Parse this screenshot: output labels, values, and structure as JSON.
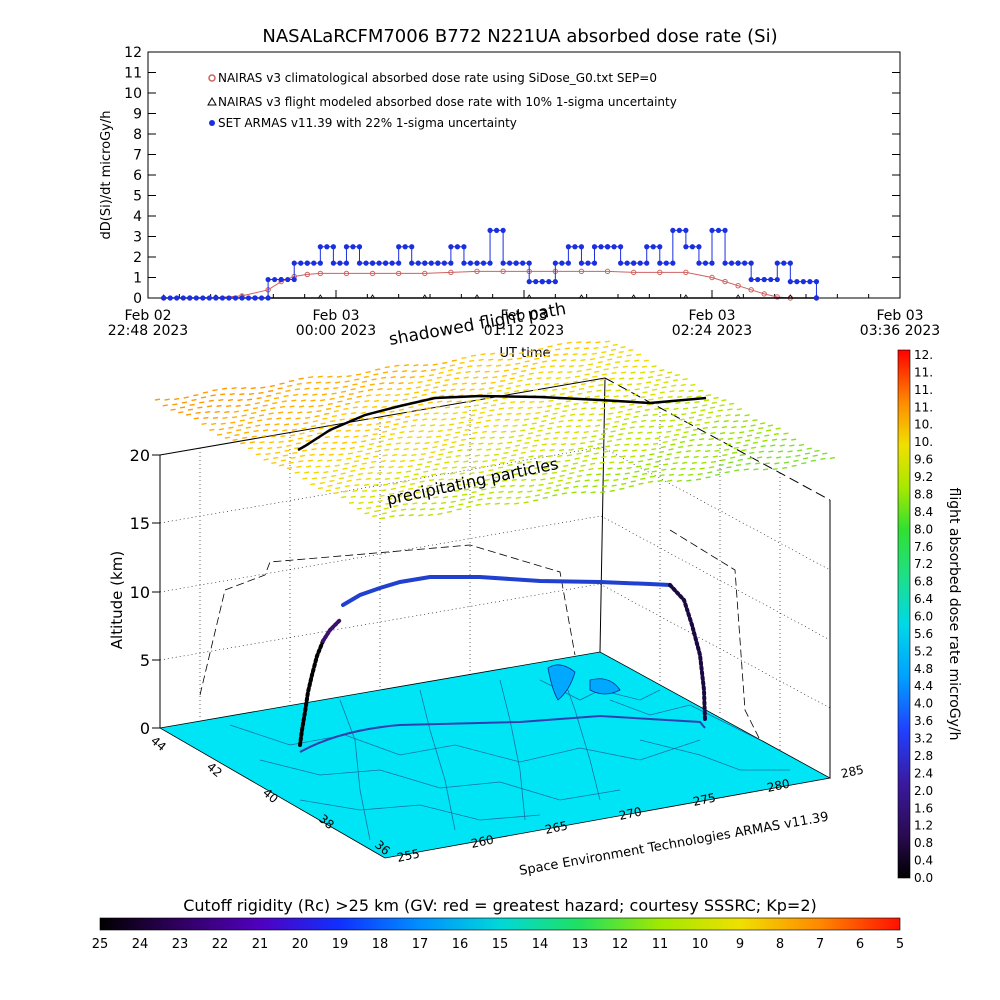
{
  "chart_data": [
    {
      "type": "line",
      "title": "NASALaRCFM7006   B772 N221UA absorbed dose rate (Si)",
      "ylabel": "dD(Si)/dt microGy/h",
      "xlabel": "UT time",
      "ylim": [
        0,
        12
      ],
      "y_ticks": [
        "0",
        "1",
        "2",
        "3",
        "4",
        "5",
        "6",
        "7",
        "8",
        "9",
        "10",
        "11",
        "12"
      ],
      "x_ticks": [
        {
          "line1": "Feb 02",
          "line2": "22:48 2023"
        },
        {
          "line1": "Feb 03",
          "line2": "00:00 2023"
        },
        {
          "line1": "Feb 03",
          "line2": "01:12 2023"
        },
        {
          "line1": "Feb 03",
          "line2": "02:24 2023"
        },
        {
          "line1": "Feb 03",
          "line2": "03:36 2023"
        }
      ],
      "legend_position": "top-left",
      "series": [
        {
          "name": "NAIRAS v3 climatological absorbed dose rate using SiDose_G0.txt SEP=0",
          "color": "#d06060",
          "x_minutes": [
            0,
            10,
            20,
            30,
            40,
            45,
            50,
            55,
            60,
            70,
            80,
            90,
            100,
            110,
            120,
            130,
            140,
            150,
            160,
            170,
            180,
            190,
            200,
            210,
            215,
            220,
            225,
            230,
            235,
            240,
            250
          ],
          "values": [
            0,
            0,
            0.02,
            0.1,
            0.4,
            0.8,
            1.05,
            1.15,
            1.2,
            1.2,
            1.2,
            1.2,
            1.2,
            1.25,
            1.3,
            1.3,
            1.3,
            1.3,
            1.3,
            1.3,
            1.25,
            1.25,
            1.25,
            1.0,
            0.8,
            0.6,
            0.4,
            0.2,
            0.05,
            0,
            0
          ]
        },
        {
          "name": "NAIRAS v3 flight modeled absorbed dose rate with 10% 1-sigma uncertainty",
          "color": "#000000",
          "x_minutes": [
            0,
            20,
            40,
            60,
            80,
            100,
            120,
            140,
            160,
            180,
            200,
            220,
            240,
            250
          ],
          "values": [
            0,
            0,
            0,
            0,
            0,
            0,
            0,
            0,
            0,
            0,
            0,
            0,
            0,
            0
          ]
        },
        {
          "name": "SET ARMAS v11.39 with 22% 1-sigma uncertainty",
          "color": "#1a2fe0",
          "x_minutes": [
            0,
            35,
            40,
            45,
            50,
            55,
            60,
            65,
            70,
            75,
            80,
            85,
            90,
            95,
            100,
            105,
            110,
            115,
            120,
            125,
            130,
            135,
            140,
            145,
            150,
            155,
            160,
            165,
            170,
            175,
            180,
            185,
            190,
            195,
            200,
            205,
            210,
            215,
            220,
            225,
            230,
            235,
            240,
            250
          ],
          "values": [
            0,
            0,
            0.9,
            0.9,
            1.7,
            1.7,
            2.5,
            1.7,
            2.5,
            1.7,
            1.7,
            1.7,
            2.5,
            1.7,
            1.7,
            1.7,
            2.5,
            1.7,
            1.7,
            3.3,
            1.7,
            1.7,
            0.8,
            0.8,
            1.7,
            2.5,
            1.7,
            2.5,
            2.5,
            1.7,
            1.7,
            2.5,
            1.7,
            3.3,
            2.5,
            1.7,
            3.3,
            1.7,
            1.7,
            0.9,
            0.9,
            1.7,
            0.8,
            0
          ]
        }
      ]
    },
    {
      "type": "scatter",
      "title": "shadowed flight path",
      "annotation": "precipitating particles",
      "zlabel": "Altitude (km)",
      "z_ticks": [
        "0",
        "5",
        "10",
        "15",
        "20"
      ],
      "lat_ticks": [
        "44",
        "42",
        "40",
        "38",
        "36"
      ],
      "lon_ticks": [
        "255",
        "260",
        "265",
        "270",
        "275",
        "280",
        "285"
      ],
      "credit": "Space Environment Technologies ARMAS v11.39"
    },
    {
      "type": "heatmap",
      "title": "flight absorbed dose rate microGy/h",
      "orientation": "vertical",
      "tick_labels": [
        "12.",
        "11.",
        "11.",
        "11.",
        "10.",
        "10.",
        "9.6",
        "9.2",
        "8.8",
        "8.4",
        "8.0",
        "7.6",
        "7.2",
        "6.8",
        "6.4",
        "6.0",
        "5.6",
        "5.2",
        "4.8",
        "4.4",
        "4.0",
        "3.6",
        "3.2",
        "2.8",
        "2.4",
        "2.0",
        "1.6",
        "1.2",
        "0.8",
        "0.4",
        "0.0"
      ]
    },
    {
      "type": "heatmap",
      "title": "Cutoff rigidity (Rc) >25 km (GV: red = greatest hazard; courtesy SSSRC; Kp=2)",
      "orientation": "horizontal",
      "tick_labels": [
        "25",
        "24",
        "23",
        "22",
        "21",
        "20",
        "19",
        "18",
        "17",
        "16",
        "15",
        "14",
        "13",
        "12",
        "11",
        "10",
        "9",
        "8",
        "7",
        "6",
        "5"
      ]
    }
  ]
}
